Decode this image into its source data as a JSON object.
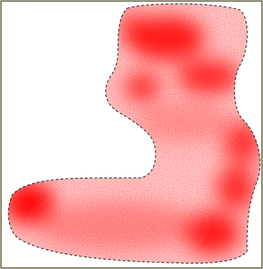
{
  "canvas": {
    "background_color": "#ffffff",
    "frame_color": "#6b6b4f",
    "outline_color": "#2a2a2a",
    "outline_style": "dashed",
    "density_color": "#ff0000"
  },
  "content": {
    "description": "",
    "region_shape": "L-shaped boot-like region with dashed boundary, filled by a red stippled density field with dense blobs"
  }
}
